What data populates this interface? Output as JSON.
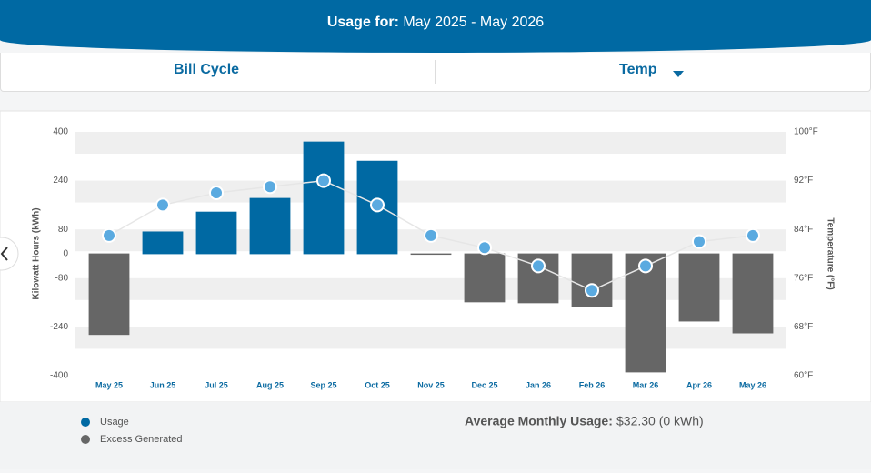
{
  "header": {
    "label": "Usage for:",
    "range": "May 2025 - May 2026"
  },
  "tabs": [
    "Bill Cycle",
    "Temp"
  ],
  "chart_data": {
    "type": "bar",
    "y_label": "Kilowatt Hours (kWh)",
    "y2_label": "Temperature (°F)",
    "categories": [
      "May 25",
      "Jun 25",
      "Jul 25",
      "Aug 25",
      "Sep 25",
      "Oct 25",
      "Nov 25",
      "Dec 25",
      "Jan 26",
      "Feb 26",
      "Mar 26",
      "Apr 26",
      "May 26"
    ],
    "series": [
      {
        "name": "Usage",
        "color": "#0069a3",
        "values": [
          null,
          72,
          137,
          182,
          367,
          304,
          null,
          null,
          null,
          null,
          null,
          null,
          null
        ]
      },
      {
        "name": "Excess Generated",
        "color": "#666666",
        "values": [
          -265,
          null,
          null,
          null,
          null,
          null,
          -2,
          -158,
          -161,
          -173,
          -388,
          -221,
          -260
        ]
      }
    ],
    "temperature": {
      "color": "#5aaae0",
      "axis": "y2",
      "values": [
        83,
        88,
        90,
        91,
        92,
        88,
        83,
        81,
        78,
        74,
        78,
        82,
        83
      ]
    },
    "ylim": [
      -400,
      400
    ],
    "yticks": [
      -400,
      -240,
      -80,
      0,
      80,
      240,
      400
    ],
    "y2lim": [
      60,
      100
    ],
    "y2ticks": [
      {
        "value": 60,
        "label": "60°F"
      },
      {
        "value": 68,
        "label": "68°F"
      },
      {
        "value": 76,
        "label": "76°F"
      },
      {
        "value": 84,
        "label": "84°F"
      },
      {
        "value": 92,
        "label": "92°F"
      },
      {
        "value": 100,
        "label": "100°F"
      }
    ]
  },
  "summary": {
    "label": "Average Monthly Usage:",
    "value": "$32.30 (0 kWh)"
  }
}
